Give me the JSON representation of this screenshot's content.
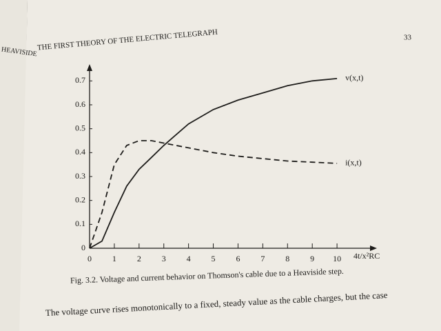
{
  "page": {
    "facing_head": "HEAVISIDE",
    "running_head": "THE FIRST THEORY OF THE ELECTRIC TELEGRAPH",
    "page_number": "33",
    "body": "The voltage curve rises monotonically to a fixed, steady value as the cable charges, but the case"
  },
  "chart_data": {
    "type": "line",
    "caption": "Fig. 3.2. Voltage and current behavior on Thomson's cable due to a Heaviside step.",
    "xlabel": "4t/x²RC",
    "x": [
      0,
      0.5,
      1,
      1.5,
      2,
      2.5,
      3,
      4,
      5,
      6,
      7,
      8,
      9,
      10
    ],
    "series": [
      {
        "name": "v(x,t)",
        "color": "#1d1c1a",
        "linestyle": "solid",
        "values": [
          0,
          0.03,
          0.15,
          0.26,
          0.33,
          0.38,
          0.43,
          0.52,
          0.58,
          0.62,
          0.65,
          0.68,
          0.7,
          0.71
        ]
      },
      {
        "name": "i(x,t)",
        "color": "#1d1c1a",
        "linestyle": "dashed",
        "values": [
          0,
          0.15,
          0.35,
          0.43,
          0.45,
          0.45,
          0.44,
          0.42,
          0.4,
          0.385,
          0.375,
          0.365,
          0.36,
          0.355
        ]
      }
    ],
    "xlim": [
      0,
      11
    ],
    "ylim": [
      0,
      0.75
    ],
    "xticks": [
      0,
      1,
      2,
      3,
      4,
      5,
      6,
      7,
      8,
      9,
      10
    ],
    "yticks": [
      0,
      0.1,
      0.2,
      0.3,
      0.4,
      0.5,
      0.6,
      0.7
    ]
  }
}
